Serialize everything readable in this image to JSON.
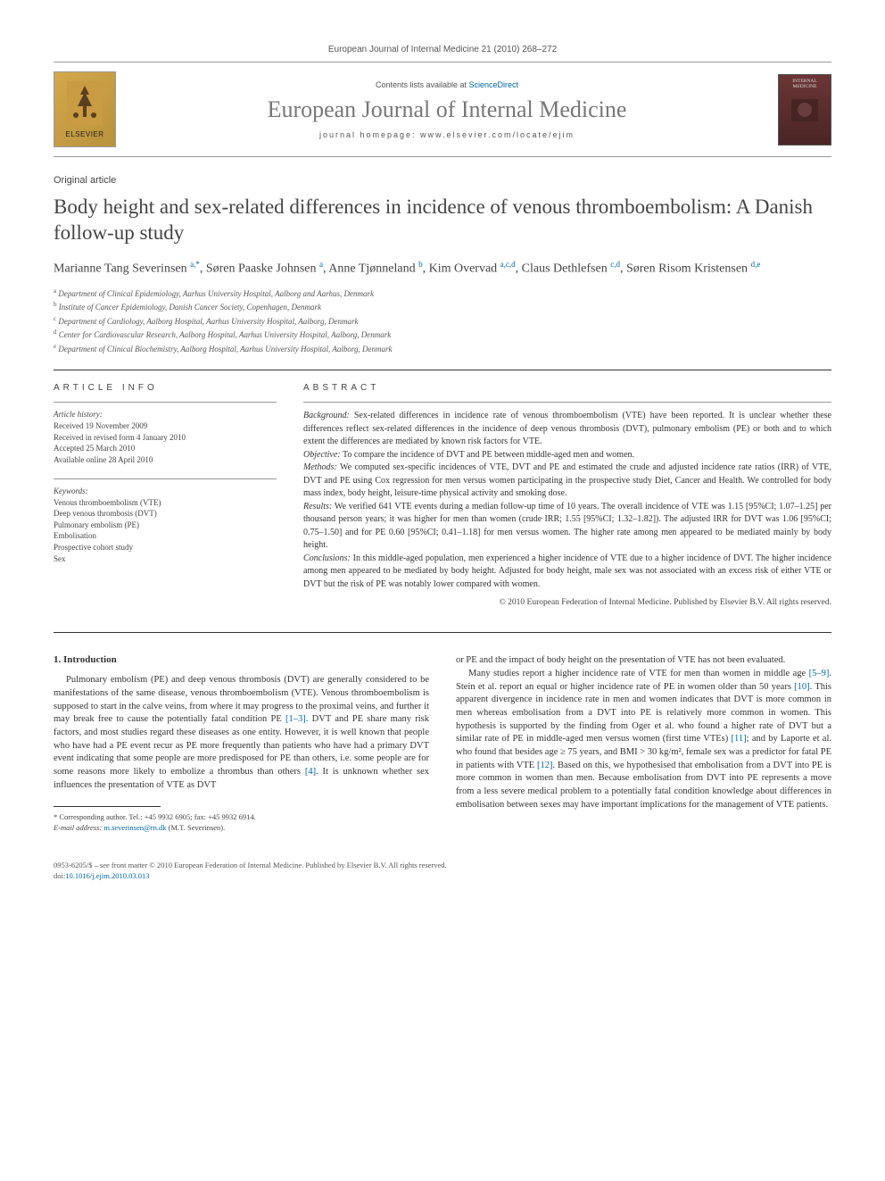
{
  "header": {
    "journal_line": "European Journal of Internal Medicine 21 (2010) 268–272",
    "contents_text": "Contents lists available at ",
    "contents_link": "ScienceDirect",
    "journal_title": "European Journal of Internal Medicine",
    "homepage_label": "journal homepage: www.elsevier.com/locate/ejim",
    "publisher_logo": "ELSEVIER",
    "cover_text": "INTERNAL MEDICINE"
  },
  "article": {
    "type": "Original article",
    "title": "Body height and sex-related differences in incidence of venous thromboembolism: A Danish follow-up study"
  },
  "authors_html": "Marianne Tang Severinsen <sup>a,*</sup>, Søren Paaske Johnsen <sup>a</sup>, Anne Tjønneland <sup>b</sup>, Kim Overvad <sup>a,c,d</sup>, Claus Dethlefsen <sup>c,d</sup>, Søren Risom Kristensen <sup>d,e</sup>",
  "affiliations": [
    {
      "sup": "a",
      "text": "Department of Clinical Epidemiology, Aarhus University Hospital, Aalborg and Aarhus, Denmark"
    },
    {
      "sup": "b",
      "text": "Institute of Cancer Epidemiology, Danish Cancer Society, Copenhagen, Denmark"
    },
    {
      "sup": "c",
      "text": "Department of Cardiology, Aalborg Hospital, Aarhus University Hospital, Aalborg, Denmark"
    },
    {
      "sup": "d",
      "text": "Center for Cardiovascular Research, Aalborg Hospital, Aarhus University Hospital, Aalborg, Denmark"
    },
    {
      "sup": "e",
      "text": "Department of Clinical Biochemistry, Aalborg Hospital, Aarhus University Hospital, Aalborg, Denmark"
    }
  ],
  "article_info": {
    "heading": "ARTICLE INFO",
    "history_label": "Article history:",
    "history": [
      "Received 19 November 2009",
      "Received in revised form 4 January 2010",
      "Accepted 25 March 2010",
      "Available online 28 April 2010"
    ],
    "keywords_label": "Keywords:",
    "keywords": [
      "Venous thromboembolism (VTE)",
      "Deep venous thrombosis (DVT)",
      "Pulmonary embolism (PE)",
      "Embolisation",
      "Prospective cohort study",
      "Sex"
    ]
  },
  "abstract": {
    "heading": "ABSTRACT",
    "sections": [
      {
        "label": "Background:",
        "text": " Sex-related differences in incidence rate of venous thromboembolism (VTE) have been reported. It is unclear whether these differences reflect sex-related differences in the incidence of deep venous thrombosis (DVT), pulmonary embolism (PE) or both and to which extent the differences are mediated by known risk factors for VTE."
      },
      {
        "label": "Objective:",
        "text": " To compare the incidence of DVT and PE between middle-aged men and women."
      },
      {
        "label": "Methods:",
        "text": " We computed sex-specific incidences of VTE, DVT and PE and estimated the crude and adjusted incidence rate ratios (IRR) of VTE, DVT and PE using Cox regression for men versus women participating in the prospective study Diet, Cancer and Health. We controlled for body mass index, body height, leisure-time physical activity and smoking dose."
      },
      {
        "label": "Results:",
        "text": " We verified 641 VTE events during a median follow-up time of 10 years. The overall incidence of VTE was 1.15 [95%CI; 1.07–1.25] per thousand person years; it was higher for men than women (crude IRR; 1.55 [95%CI; 1.32–1.82]). The adjusted IRR for DVT was 1.06 [95%CI; 0.75–1.50] and for PE 0.60 [95%CI; 0.41–1.18] for men versus women. The higher rate among men appeared to be mediated mainly by body height."
      },
      {
        "label": "Conclusions:",
        "text": " In this middle-aged population, men experienced a higher incidence of VTE due to a higher incidence of DVT. The higher incidence among men appeared to be mediated by body height. Adjusted for body height, male sex was not associated with an excess risk of either VTE or DVT but the risk of PE was notably lower compared with women."
      }
    ],
    "copyright": "© 2010 European Federation of Internal Medicine. Published by Elsevier B.V. All rights reserved."
  },
  "body": {
    "introduction_heading": "1. Introduction",
    "col1_para1": "Pulmonary embolism (PE) and deep venous thrombosis (DVT) are generally considered to be manifestations of the same disease, venous thromboembolism (VTE). Venous thromboembolism is supposed to start in the calve veins, from where it may progress to the proximal veins, and further it may break free to cause the potentially fatal condition PE [1–3]. DVT and PE share many risk factors, and most studies regard these diseases as one entity. However, it is well known that people who have had a PE event recur as PE more frequently than patients who have had a primary DVT event indicating that some people are more predisposed for PE than others, i.e. some people are for some reasons more likely to embolize a thrombus than others [4]. It is unknown whether sex influences the presentation of VTE as DVT",
    "col2_para1": "or PE and the impact of body height on the presentation of VTE has not been evaluated.",
    "col2_para2": "Many studies report a higher incidence rate of VTE for men than women in middle age [5–9]. Stein et al. report an equal or higher incidence rate of PE in women older than 50 years [10]. This apparent divergence in incidence rate in men and women indicates that DVT is more common in men whereas embolisation from a DVT into PE is relatively more common in women. This hypothesis is supported by the finding from Oger et al. who found a higher rate of DVT but a similar rate of PE in middle-aged men versus women (first time VTEs) [11]; and by Laporte et al. who found that besides age ≥ 75 years, and BMI > 30 kg/m², female sex was a predictor for fatal PE in patients with VTE [12]. Based on this, we hypothesised that embolisation from a DVT into PE is more common in women than men. Because embolisation from DVT into PE represents a move from a less severe medical problem to a potentially fatal condition knowledge about differences in embolisation between sexes may have important implications for the management of VTE patients."
  },
  "footnote": {
    "corresponding": "* Corresponding author. Tel.: +45 9932 6905; fax: +45 9932 6914.",
    "email_label": "E-mail address: ",
    "email": "m.severinsen@rn.dk",
    "email_suffix": " (M.T. Severinsen)."
  },
  "footer": {
    "line1": "0953-6205/$ – see front matter © 2010 European Federation of Internal Medicine. Published by Elsevier B.V. All rights reserved.",
    "doi_label": "doi:",
    "doi": "10.1016/j.ejim.2010.03.013"
  },
  "colors": {
    "link": "#0066aa",
    "text": "#333333",
    "muted": "#555555",
    "border": "#333333"
  }
}
